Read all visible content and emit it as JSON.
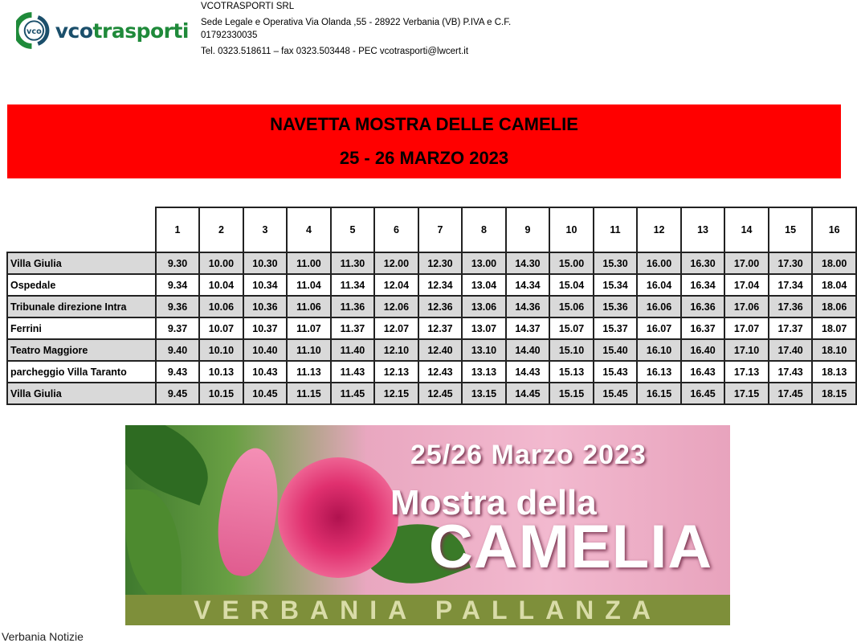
{
  "header": {
    "logo_text_a": "vco",
    "logo_text_b": "trasporti",
    "company_name": "VCOTRASPORTI SRL",
    "address": "Sede Legale e Operativa Via Olanda ,55 - 28922 Verbania (VB) P.IVA e C.F. 01792330035",
    "contacts": "Tel. 0323.518611 – fax 0323.503448 - PEC vcotrasporti@lwcert.it"
  },
  "banner": {
    "title": "NAVETTA MOSTRA DELLE CAMELIE",
    "dates": "25 - 26 MARZO 2023",
    "color": "#ff0000"
  },
  "timetable": {
    "runs": [
      "1",
      "2",
      "3",
      "4",
      "5",
      "6",
      "7",
      "8",
      "9",
      "10",
      "11",
      "12",
      "13",
      "14",
      "15",
      "16"
    ],
    "rows": [
      {
        "stop": "Villa Giulia",
        "times": [
          "9.30",
          "10.00",
          "10.30",
          "11.00",
          "11.30",
          "12.00",
          "12.30",
          "13.00",
          "14.30",
          "15.00",
          "15.30",
          "16.00",
          "16.30",
          "17.00",
          "17.30",
          "18.00"
        ]
      },
      {
        "stop": "Ospedale",
        "times": [
          "9.34",
          "10.04",
          "10.34",
          "11.04",
          "11.34",
          "12.04",
          "12.34",
          "13.04",
          "14.34",
          "15.04",
          "15.34",
          "16.04",
          "16.34",
          "17.04",
          "17.34",
          "18.04"
        ]
      },
      {
        "stop": "Tribunale direzione Intra",
        "times": [
          "9.36",
          "10.06",
          "10.36",
          "11.06",
          "11.36",
          "12.06",
          "12.36",
          "13.06",
          "14.36",
          "15.06",
          "15.36",
          "16.06",
          "16.36",
          "17.06",
          "17.36",
          "18.06"
        ]
      },
      {
        "stop": "Ferrini",
        "times": [
          "9.37",
          "10.07",
          "10.37",
          "11.07",
          "11.37",
          "12.07",
          "12.37",
          "13.07",
          "14.37",
          "15.07",
          "15.37",
          "16.07",
          "16.37",
          "17.07",
          "17.37",
          "18.07"
        ]
      },
      {
        "stop": "Teatro Maggiore",
        "times": [
          "9.40",
          "10.10",
          "10.40",
          "11.10",
          "11.40",
          "12.10",
          "12.40",
          "13.10",
          "14.40",
          "15.10",
          "15.40",
          "16.10",
          "16.40",
          "17.10",
          "17.40",
          "18.10"
        ]
      },
      {
        "stop": "parcheggio Villa Taranto",
        "times": [
          "9.43",
          "10.13",
          "10.43",
          "11.13",
          "11.43",
          "12.13",
          "12.43",
          "13.13",
          "14.43",
          "15.13",
          "15.43",
          "16.13",
          "16.43",
          "17.13",
          "17.43",
          "18.13"
        ]
      },
      {
        "stop": "Villa Giulia",
        "times": [
          "9.45",
          "10.15",
          "10.45",
          "11.15",
          "11.45",
          "12.15",
          "12.45",
          "13.15",
          "14.45",
          "15.15",
          "15.45",
          "16.15",
          "16.45",
          "17.15",
          "17.45",
          "18.15"
        ]
      }
    ]
  },
  "poster": {
    "date": "25/26  Marzo  2023",
    "line1": "Mostra della",
    "line2": "CAMELIA",
    "place": "VERBANIA PALLANZA"
  },
  "footer": {
    "credit": "Verbania Notizie"
  }
}
